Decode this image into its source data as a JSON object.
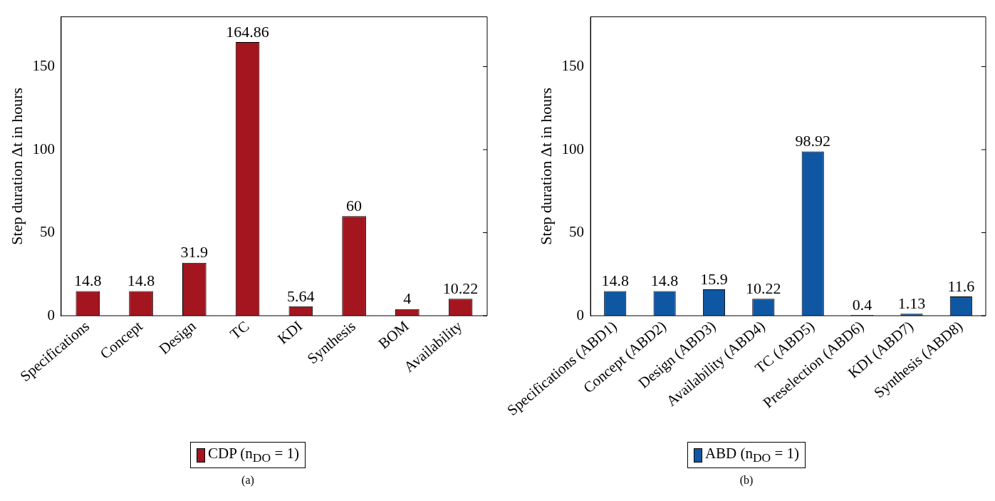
{
  "chart_data": [
    {
      "type": "bar",
      "categories": [
        "Specifications",
        "Concept",
        "Design",
        "TC",
        "KDI",
        "Synthesis",
        "BOM",
        "Availability"
      ],
      "series": [
        {
          "name": "CDP (n$_{DO}$ = 1)",
          "color": "#a3161f",
          "values": [
            14.8,
            14.8,
            31.9,
            164.86,
            5.64,
            60,
            4,
            10.22
          ]
        }
      ],
      "ylabel": "Step duration Δt in hours",
      "ylim": [
        0,
        180
      ],
      "yticks": [
        0,
        50,
        100,
        150
      ],
      "data_labels": true,
      "legend": "bottom",
      "annotations": [
        "(a)"
      ]
    },
    {
      "type": "bar",
      "categories": [
        "Specifications (ABD1)",
        "Concept (ABD2)",
        "Design (ABD3)",
        "Availability (ABD4)",
        "TC (ABD5)",
        "Preselection (ABD6)",
        "KDI (ABD7)",
        "Synthesis (ABD8)"
      ],
      "series": [
        {
          "name": "ABD (n$_{DO}$ = 1)",
          "color": "#0f57a3",
          "values": [
            14.8,
            14.8,
            15.9,
            10.22,
            98.92,
            0.4,
            1.13,
            11.6
          ]
        }
      ],
      "ylabel": "Step duration Δt in hours",
      "ylim": [
        0,
        180
      ],
      "yticks": [
        0,
        50,
        100,
        150
      ],
      "data_labels": true,
      "legend": "bottom",
      "annotations": [
        "(b)"
      ]
    }
  ]
}
